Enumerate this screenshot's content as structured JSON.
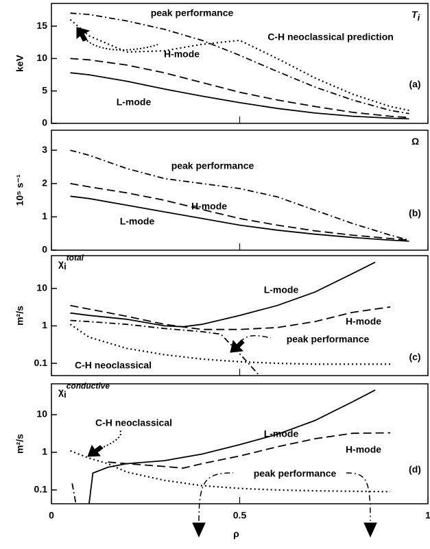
{
  "chart_data": [
    {
      "type": "line",
      "panel": "(a)",
      "ylabel": "keV",
      "symbol": "T",
      "symbol_sub": "i",
      "xlim": [
        0,
        1
      ],
      "xticks": [
        0,
        0.5,
        1
      ],
      "ylim": [
        0,
        18.5
      ],
      "yticks": [
        0,
        5,
        10,
        15
      ],
      "log_y": false,
      "series": [
        {
          "name": "peak performance",
          "color": "#000",
          "style": "dashdot",
          "x": [
            0.05,
            0.1,
            0.2,
            0.3,
            0.4,
            0.5,
            0.6,
            0.7,
            0.8,
            0.9,
            0.95
          ],
          "values": [
            17,
            16.8,
            15.8,
            14.5,
            12.8,
            10.5,
            8,
            5.6,
            3.6,
            2,
            1.5
          ]
        },
        {
          "name": "C-H neoclassical prediction",
          "color": "#000",
          "style": "dotted",
          "x": [
            0.05,
            0.1,
            0.2,
            0.3,
            0.4,
            0.5,
            0.6,
            0.7,
            0.8,
            0.9,
            0.95
          ],
          "values": [
            16,
            13.5,
            11,
            11.2,
            12.2,
            12.8,
            10,
            7,
            4.5,
            2.6,
            2
          ]
        },
        {
          "name": "H-mode",
          "color": "#000",
          "style": "dashed",
          "x": [
            0.05,
            0.1,
            0.2,
            0.3,
            0.4,
            0.5,
            0.6,
            0.7,
            0.8,
            0.9,
            0.95
          ],
          "values": [
            10,
            9.8,
            9,
            7.8,
            6.3,
            4.8,
            3.6,
            2.6,
            1.7,
            1.1,
            0.9
          ]
        },
        {
          "name": "L-mode",
          "color": "#000",
          "style": "solid",
          "x": [
            0.05,
            0.1,
            0.2,
            0.3,
            0.4,
            0.5,
            0.6,
            0.7,
            0.8,
            0.9,
            0.95
          ],
          "values": [
            7.8,
            7.5,
            6.5,
            5.3,
            4.2,
            3.2,
            2.3,
            1.6,
            1.1,
            0.8,
            0.7
          ]
        }
      ]
    },
    {
      "type": "line",
      "panel": "(b)",
      "ylabel": "10⁵ s⁻¹",
      "symbol": "Ω",
      "xlim": [
        0,
        1
      ],
      "xticks": [
        0,
        0.5,
        1
      ],
      "ylim": [
        0,
        3.6
      ],
      "yticks": [
        0,
        1,
        2,
        3
      ],
      "log_y": false,
      "series": [
        {
          "name": "peak performance",
          "color": "#000",
          "style": "dashdot",
          "x": [
            0.05,
            0.1,
            0.2,
            0.3,
            0.4,
            0.5,
            0.6,
            0.7,
            0.8,
            0.9,
            0.95
          ],
          "values": [
            3,
            2.85,
            2.45,
            2.15,
            2,
            1.85,
            1.6,
            1.2,
            0.8,
            0.45,
            0.3
          ]
        },
        {
          "name": "H-mode",
          "color": "#000",
          "style": "dashed",
          "x": [
            0.05,
            0.1,
            0.2,
            0.3,
            0.4,
            0.5,
            0.6,
            0.7,
            0.8,
            0.9,
            0.95
          ],
          "values": [
            2,
            1.9,
            1.72,
            1.5,
            1.22,
            0.95,
            0.75,
            0.58,
            0.45,
            0.35,
            0.3
          ]
        },
        {
          "name": "L-mode",
          "color": "#000",
          "style": "solid",
          "x": [
            0.05,
            0.1,
            0.2,
            0.3,
            0.4,
            0.5,
            0.6,
            0.7,
            0.8,
            0.9,
            0.95
          ],
          "values": [
            1.62,
            1.55,
            1.35,
            1.15,
            0.95,
            0.75,
            0.6,
            0.48,
            0.38,
            0.3,
            0.27
          ]
        }
      ]
    },
    {
      "type": "line",
      "panel": "(c)",
      "ylabel": "m²/s",
      "symbol": "χ",
      "symbol_sub": "i",
      "symbol_sup": "total",
      "xlim": [
        0,
        1
      ],
      "xticks": [
        0,
        0.5,
        1
      ],
      "ylim": [
        0.047,
        75
      ],
      "yticks": [
        0.1,
        1,
        10
      ],
      "log_y": true,
      "series": [
        {
          "name": "L-mode",
          "color": "#000",
          "style": "solid",
          "x": [
            0.05,
            0.1,
            0.2,
            0.3,
            0.35,
            0.4,
            0.5,
            0.6,
            0.7,
            0.8,
            0.86
          ],
          "values": [
            2.2,
            1.9,
            1.5,
            1,
            0.95,
            1.1,
            1.9,
            3.5,
            8,
            25,
            50
          ]
        },
        {
          "name": "H-mode",
          "color": "#000",
          "style": "dashed",
          "x": [
            0.05,
            0.1,
            0.2,
            0.3,
            0.4,
            0.5,
            0.6,
            0.7,
            0.8,
            0.9
          ],
          "values": [
            3.5,
            2.8,
            1.8,
            1.1,
            0.8,
            0.8,
            0.9,
            1.3,
            2.3,
            3.2
          ]
        },
        {
          "name": "peak performance",
          "color": "#000",
          "style": "dashdot",
          "x": [
            0.05,
            0.1,
            0.2,
            0.3,
            0.4,
            0.45,
            0.5,
            0.55
          ],
          "values": [
            1.4,
            1.3,
            1.1,
            0.85,
            0.7,
            0.6,
            0.18,
            0.05
          ]
        },
        {
          "name": "C-H neoclassical",
          "color": "#000",
          "style": "dotted",
          "x": [
            0.05,
            0.1,
            0.2,
            0.3,
            0.4,
            0.5,
            0.6,
            0.7,
            0.9
          ],
          "values": [
            1.1,
            0.5,
            0.25,
            0.17,
            0.13,
            0.11,
            0.1,
            0.095,
            0.095
          ]
        }
      ]
    },
    {
      "type": "line",
      "panel": "(d)",
      "ylabel": "m²/s",
      "symbol": "χ",
      "symbol_sub": "i",
      "symbol_sup": "conductive",
      "xlabel": "ρ",
      "xlim": [
        0,
        1
      ],
      "xticks": [
        0,
        0.5,
        1
      ],
      "ylim": [
        0.043,
        66
      ],
      "yticks": [
        0.1,
        1,
        10
      ],
      "log_y": true,
      "series": [
        {
          "name": "C-H neoclassical",
          "color": "#000",
          "style": "dotted",
          "x": [
            0.05,
            0.1,
            0.15,
            0.2,
            0.3,
            0.4,
            0.5,
            0.6,
            0.7,
            0.9
          ],
          "values": [
            1.1,
            0.7,
            0.5,
            0.3,
            0.18,
            0.13,
            0.11,
            0.1,
            0.095,
            0.09
          ]
        },
        {
          "name": "L-mode",
          "color": "#000",
          "style": "solid",
          "x": [
            0.1,
            0.11,
            0.15,
            0.2,
            0.3,
            0.4,
            0.5,
            0.6,
            0.7,
            0.8,
            0.86
          ],
          "values": [
            0.043,
            0.28,
            0.4,
            0.5,
            0.6,
            0.9,
            1.6,
            3,
            7,
            22,
            45
          ]
        },
        {
          "name": "H-mode",
          "color": "#000",
          "style": "dashed",
          "x": [
            0.15,
            0.2,
            0.3,
            0.35,
            0.4,
            0.5,
            0.6,
            0.7,
            0.8,
            0.9
          ],
          "values": [
            0.55,
            0.5,
            0.42,
            0.38,
            0.5,
            0.8,
            1.4,
            2.3,
            3.2,
            3.3
          ]
        },
        {
          "name": "peak performance",
          "color": "#000",
          "style": "dashdot",
          "x": [
            0.055,
            0.065
          ],
          "values": [
            0.15,
            0.043
          ]
        }
      ]
    }
  ]
}
